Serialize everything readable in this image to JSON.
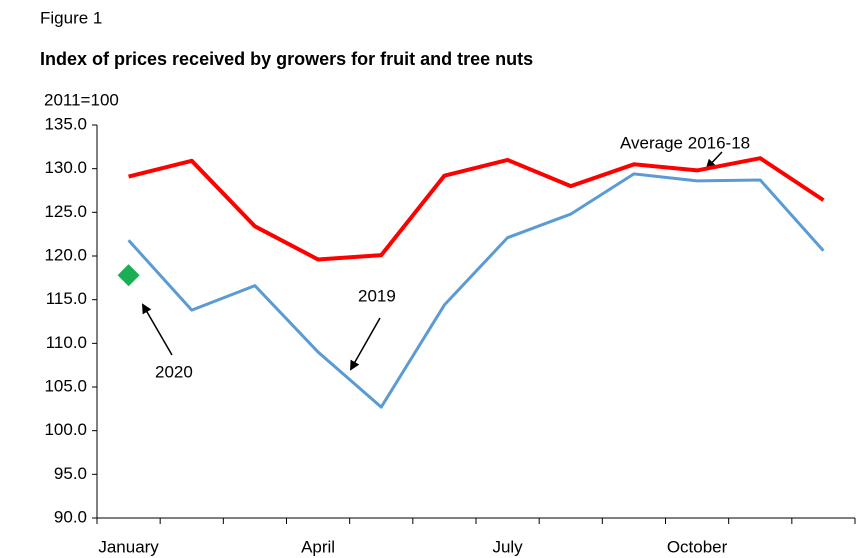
{
  "chart_data": {
    "type": "line",
    "title": "Figure 1",
    "subtitle": "Index of prices received by growers for fruit and tree nuts",
    "y_axis_label": "2011=100",
    "categories": [
      "January",
      null,
      null,
      "April",
      null,
      null,
      "July",
      null,
      null,
      "October",
      null,
      null
    ],
    "series": [
      {
        "name": "Average 2016-18",
        "color": "#ff0000",
        "values": [
          129.1,
          130.9,
          123.4,
          119.6,
          120.1,
          129.2,
          131.0,
          128.0,
          130.5,
          129.8,
          131.2,
          126.4
        ]
      },
      {
        "name": "2019",
        "color": "#5b9bd5",
        "values": [
          121.8,
          113.8,
          116.6,
          109.0,
          102.7,
          114.4,
          122.1,
          124.8,
          129.4,
          128.6,
          128.7,
          120.6
        ]
      },
      {
        "name": "2020",
        "color": "#1aaf54",
        "marker": "diamond",
        "values": [
          117.8,
          null,
          null,
          null,
          null,
          null,
          null,
          null,
          null,
          null,
          null,
          null
        ]
      }
    ],
    "annotations": [
      "Average 2016-18",
      "2019",
      "2020"
    ],
    "ylim": [
      90,
      135
    ],
    "yticks": [
      {
        "value": 90,
        "label": "90.0"
      },
      {
        "value": 95,
        "label": "95.0"
      },
      {
        "value": 100,
        "label": "100.0"
      },
      {
        "value": 105,
        "label": "105.0"
      },
      {
        "value": 110,
        "label": "110.0"
      },
      {
        "value": 115,
        "label": "115.0"
      },
      {
        "value": 120,
        "label": "120.0"
      },
      {
        "value": 125,
        "label": "125.0"
      },
      {
        "value": 130,
        "label": "130.0"
      },
      {
        "value": 135,
        "label": "135.0"
      }
    ],
    "grid": false
  }
}
